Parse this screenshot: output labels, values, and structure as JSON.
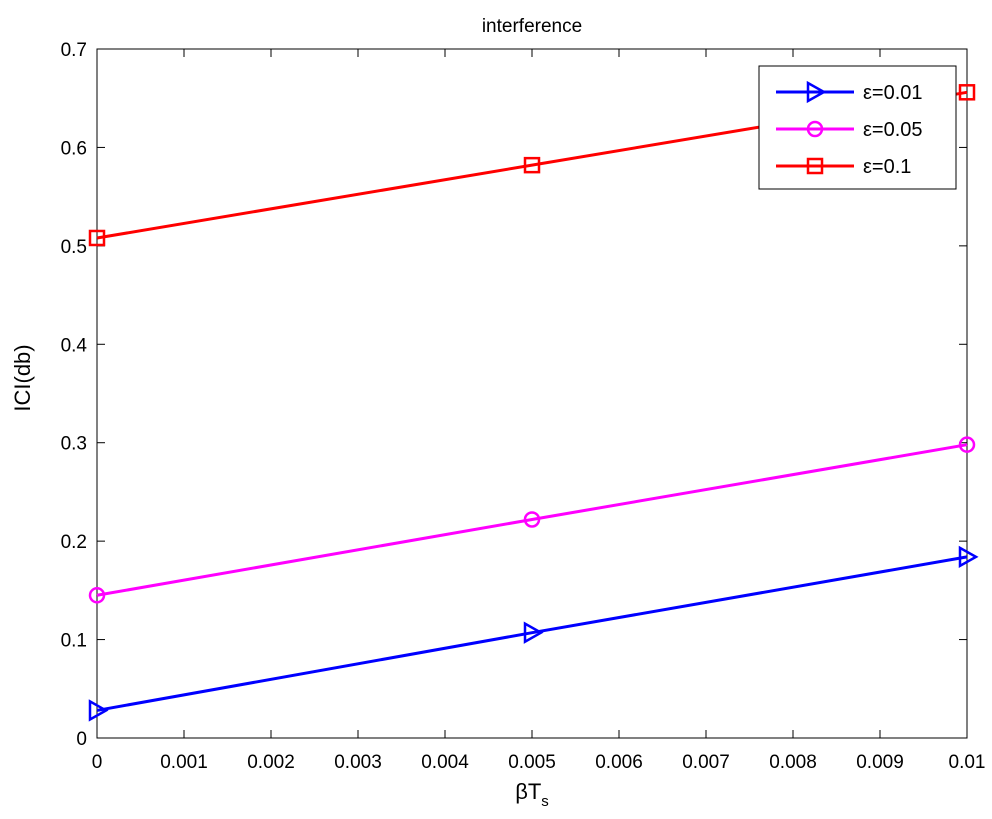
{
  "chart_data": {
    "type": "line",
    "title": "interference",
    "xlabel_base": "βT",
    "xlabel_sub": "s",
    "ylabel": "ICI(db)",
    "x": [
      0,
      0.005,
      0.01
    ],
    "xlim": [
      0,
      0.01
    ],
    "ylim": [
      0,
      0.7
    ],
    "xticks": [
      0,
      0.001,
      0.002,
      0.003,
      0.004,
      0.005,
      0.006,
      0.007,
      0.008,
      0.009,
      0.01
    ],
    "xtick_labels": [
      "0",
      "0.001",
      "0.002",
      "0.003",
      "0.004",
      "0.005",
      "0.006",
      "0.007",
      "0.008",
      "0.009",
      "0.01"
    ],
    "yticks": [
      0,
      0.1,
      0.2,
      0.3,
      0.4,
      0.5,
      0.6,
      0.7
    ],
    "ytick_labels": [
      "0",
      "0.1",
      "0.2",
      "0.3",
      "0.4",
      "0.5",
      "0.6",
      "0.7"
    ],
    "grid": false,
    "legend_position": "top-right",
    "series": [
      {
        "name": "ε=0.01",
        "values": [
          0.028,
          0.107,
          0.184
        ],
        "color": "#0000ff",
        "marker": "triangle-right"
      },
      {
        "name": "ε=0.05",
        "values": [
          0.145,
          0.222,
          0.298
        ],
        "color": "#ff00ff",
        "marker": "circle"
      },
      {
        "name": "ε=0.1",
        "values": [
          0.508,
          0.582,
          0.656
        ],
        "color": "#ff0000",
        "marker": "square"
      }
    ]
  }
}
